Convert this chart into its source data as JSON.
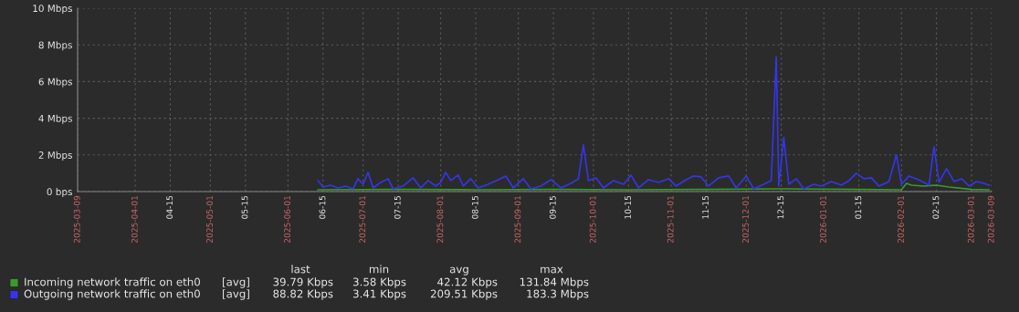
{
  "chart_data": {
    "type": "line",
    "ylim": [
      0,
      10
    ],
    "yticks": [
      {
        "value": 0,
        "label": "0 bps"
      },
      {
        "value": 2,
        "label": "2 Mbps"
      },
      {
        "value": 4,
        "label": "4 Mbps"
      },
      {
        "value": 6,
        "label": "6 Mbps"
      },
      {
        "value": 8,
        "label": "8 Mbps"
      },
      {
        "value": 10,
        "label": "10 Mbps"
      }
    ],
    "xlim": [
      "2025-03-09",
      "2026-03-09"
    ],
    "xticks": [
      "2025-03-09",
      "2025-04-01",
      {
        "value": "2025-04-15",
        "label": "04-15"
      },
      "2025-05-01",
      {
        "value": "2025-05-15",
        "label": "05-15"
      },
      "2025-06-01",
      {
        "value": "2025-06-15",
        "label": "06-15"
      },
      "2025-07-01",
      {
        "value": "2025-07-15",
        "label": "07-15"
      },
      "2025-08-01",
      {
        "value": "2025-08-15",
        "label": "08-15"
      },
      "2025-09-01",
      {
        "value": "2025-09-15",
        "label": "09-15"
      },
      "2025-10-01",
      {
        "value": "2025-10-15",
        "label": "10-15"
      },
      "2025-11-01",
      {
        "value": "2025-11-15",
        "label": "11-15"
      },
      "2025-12-01",
      {
        "value": "2025-12-15",
        "label": "12-15"
      },
      "2026-01-01",
      {
        "value": "2026-01-15",
        "label": "01-15"
      },
      "2026-02-01",
      {
        "value": "2026-02-15",
        "label": "02-15"
      },
      "2026-03-01",
      "2026-03-09"
    ],
    "grid": true,
    "legend": "bottom left",
    "series": [
      {
        "name": "Incoming network traffic on eth0",
        "color": "#3a9a2a",
        "x": [
          "2025-06-13",
          "2025-07-15",
          "2025-08-15",
          "2025-09-15",
          "2025-10-15",
          "2025-11-15",
          "2025-12-15",
          "2026-01-15",
          "2026-02-01",
          "2026-02-03",
          "2026-02-05",
          "2026-02-10",
          "2026-02-15",
          "2026-02-20",
          "2026-03-01",
          "2026-03-08"
        ],
        "values": [
          0.1,
          0.12,
          0.1,
          0.12,
          0.1,
          0.12,
          0.15,
          0.12,
          0.1,
          0.45,
          0.35,
          0.3,
          0.35,
          0.25,
          0.12,
          0.1
        ]
      },
      {
        "name": "Outgoing network traffic on eth0",
        "color": "#3535e8",
        "x": [
          "2025-06-13",
          "2025-06-15",
          "2025-06-18",
          "2025-06-21",
          "2025-06-24",
          "2025-06-27",
          "2025-06-29",
          "2025-07-01",
          "2025-07-03",
          "2025-07-05",
          "2025-07-08",
          "2025-07-11",
          "2025-07-13",
          "2025-07-17",
          "2025-07-21",
          "2025-07-24",
          "2025-07-27",
          "2025-07-30",
          "2025-08-01",
          "2025-08-03",
          "2025-08-05",
          "2025-08-08",
          "2025-08-10",
          "2025-08-13",
          "2025-08-16",
          "2025-08-20",
          "2025-08-24",
          "2025-08-27",
          "2025-08-30",
          "2025-09-03",
          "2025-09-06",
          "2025-09-10",
          "2025-09-14",
          "2025-09-18",
          "2025-09-22",
          "2025-09-25",
          "2025-09-27",
          "2025-09-29",
          "2025-10-02",
          "2025-10-05",
          "2025-10-09",
          "2025-10-13",
          "2025-10-16",
          "2025-10-19",
          "2025-10-23",
          "2025-10-27",
          "2025-10-31",
          "2025-11-03",
          "2025-11-07",
          "2025-11-10",
          "2025-11-13",
          "2025-11-16",
          "2025-11-20",
          "2025-11-24",
          "2025-11-27",
          "2025-12-01",
          "2025-12-04",
          "2025-12-08",
          "2025-12-11",
          "2025-12-13",
          "2025-12-14",
          "2025-12-16",
          "2025-12-18",
          "2025-12-21",
          "2025-12-24",
          "2025-12-28",
          "2025-12-31",
          "2026-01-04",
          "2026-01-08",
          "2026-01-11",
          "2026-01-14",
          "2026-01-17",
          "2026-01-20",
          "2026-01-23",
          "2026-01-27",
          "2026-01-30",
          "2026-02-01",
          "2026-02-04",
          "2026-02-07",
          "2026-02-10",
          "2026-02-12",
          "2026-02-14",
          "2026-02-16",
          "2026-02-19",
          "2026-02-22",
          "2026-02-25",
          "2026-02-28",
          "2026-03-03",
          "2026-03-06",
          "2026-03-08"
        ],
        "values": [
          0.6,
          0.25,
          0.35,
          0.2,
          0.3,
          0.15,
          0.7,
          0.4,
          1.05,
          0.2,
          0.5,
          0.7,
          0.15,
          0.3,
          0.75,
          0.2,
          0.6,
          0.3,
          0.5,
          1.05,
          0.6,
          0.9,
          0.3,
          0.7,
          0.2,
          0.4,
          0.65,
          0.85,
          0.2,
          0.7,
          0.15,
          0.3,
          0.65,
          0.2,
          0.45,
          0.7,
          2.55,
          0.6,
          0.75,
          0.2,
          0.6,
          0.4,
          0.9,
          0.2,
          0.65,
          0.5,
          0.7,
          0.3,
          0.65,
          0.85,
          0.8,
          0.3,
          0.75,
          0.85,
          0.2,
          0.85,
          0.15,
          0.4,
          0.6,
          7.35,
          0.3,
          2.95,
          0.4,
          0.7,
          0.15,
          0.4,
          0.3,
          0.55,
          0.35,
          0.6,
          1.0,
          0.7,
          0.75,
          0.3,
          0.55,
          2.0,
          0.4,
          0.85,
          0.7,
          0.5,
          0.35,
          2.45,
          0.5,
          1.25,
          0.55,
          0.7,
          0.3,
          0.55,
          0.45,
          0.35
        ]
      }
    ],
    "annotations": [
      "last",
      "min",
      "avg",
      "max",
      "[avg]",
      "39.79 Kbps",
      "3.58 Kbps",
      "42.12 Kbps",
      "131.84 Mbps",
      "[avg]",
      "88.82 Kbps",
      "3.41 Kbps",
      "209.51 Kbps",
      "183.3 Mbps"
    ]
  }
}
